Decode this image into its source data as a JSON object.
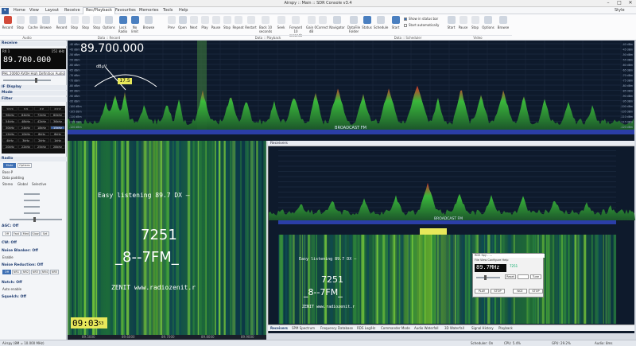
{
  "window": {
    "title": "Airspy :: Main :: SDR Console v3.4"
  },
  "menu": {
    "tabs": [
      "Home",
      "View",
      "Layout",
      "Receive",
      "Rec/Playback",
      "Favourites",
      "Memories",
      "Tools",
      "Help"
    ],
    "active": "Rec/Playback",
    "style": "Style"
  },
  "ribbon": {
    "audio": {
      "label": "Audio",
      "buttons": [
        "Record",
        "Stop",
        "Cache",
        "Browse"
      ]
    },
    "record": {
      "label": "Data :: Record",
      "buttons": [
        "Record",
        "Stop",
        "Stop",
        "Stop",
        "Options",
        "Lock Radio",
        "No limit",
        "Browse"
      ]
    },
    "playback": {
      "label": "Data :: Playback",
      "buttons": [
        "Prev",
        "Open",
        "Next",
        "Play",
        "Pause",
        "Stop",
        "Repeat",
        "Restart",
        "Back 10 seconds",
        "Seek",
        "Forward 10 seconds",
        "Gain 0 dB",
        "Correct",
        "Navigator",
        "DataFile Folder",
        "Status"
      ]
    },
    "scheduler": {
      "label": "Data :: Scheduler",
      "buttons": [
        "Schedule",
        "Start"
      ],
      "checks": [
        "Show in status bar",
        "Start automatically"
      ]
    },
    "video": {
      "label": "Video",
      "buttons": [
        "Start",
        "Pause",
        "Stop",
        "Options",
        "Browse"
      ]
    }
  },
  "left": {
    "receive_header": "Receive",
    "rx": {
      "label": "RX 1",
      "rate": "151 kHz",
      "freq": "89.700.000"
    },
    "station": "PHL 20060 AVOH High Definition Audio",
    "if_display": "IF Display",
    "mode": "Mode",
    "filter": "Filter",
    "filter_cells": [
      "<<<",
      "<<",
      ">>",
      ">>>",
      "96kHz",
      "84kHz",
      "72kHz",
      "60kHz",
      "54kHz",
      "48kHz",
      "42kHz",
      "36kHz",
      "30kHz",
      "24kHz",
      "18kHz",
      "15kHz",
      "12kHz",
      "10kHz",
      "8kHz",
      "6kHz",
      "4kHz",
      "3kHz",
      "2kHz",
      "1kHz",
      "20kHz",
      "22kHz",
      "25kHz",
      "28kHz"
    ],
    "radio_header": "Radio",
    "radio_tabs": [
      "Mute",
      "Options"
    ],
    "radio_opts": [
      "Bass-P",
      "Data padding",
      "Stereo",
      "Global",
      "Selective"
    ],
    "agc": "AGC: Off",
    "agc_btns": [
      "Off",
      "Fast",
      "Med",
      "Slow",
      "Set"
    ],
    "cw": "CW: Off",
    "noise_blanker": "Noise Blanker: Off",
    "nb_enable": "Enable",
    "noise_reduction": "Noise Reduction: Off",
    "nr_btns": [
      "Off",
      "NR1",
      "NR2",
      "NR3",
      "NR4",
      "NR5"
    ],
    "notch": "Notch: Off",
    "notch_opt": "Auto enable",
    "squelch": "Squelch: Off"
  },
  "spectrum": {
    "freq": "89.700.000",
    "meter_label": "dBµV",
    "meter_value": "17.5",
    "band_label": "BROADCAST FM",
    "db_ticks": [
      "-40 dBm",
      "-45 dBm",
      "-50 dBm",
      "-55 dBm",
      "-60 dBm",
      "-65 dBm",
      "-70 dBm",
      "-75 dBm",
      "-80 dBm",
      "-85 dBm",
      "-90 dBm",
      "-95 dBm",
      "-100 dBm",
      "-105 dBm",
      "-110 dBm",
      "-115 dBm",
      "-120 dBm"
    ]
  },
  "waterfall_main": {
    "rds_ps": "Easy listening  89.7  DX  —",
    "rds_pi": "7251",
    "rds_name": "_8--7FM_",
    "rds_rt": "ZENIT  www.radiozenit.r",
    "clock": "09:03",
    "clock_sec": "53",
    "ticks": [
      "89.5000",
      "89.6000",
      "89.7000",
      "89.8000",
      "89.9000"
    ]
  },
  "receivers": {
    "header": "Receivers",
    "band_label": "BROADCAST FM",
    "rds_ps": "Easy listening  89.7  DX  —",
    "rds_pi": "7251",
    "rds_name": "_8--7FM_",
    "rds_rt": "ZENIT  www.radiozenit.r"
  },
  "rds_spy": {
    "title": "RDS Spy - ...",
    "menu": "File   View   Configure   Help",
    "freq": "89.7MHz",
    "pi": "7251",
    "reset": "Reset",
    "tune": "Tune",
    "play": "PLAY",
    "stop": "STOP",
    "nce": "NCE",
    "stop2": "STOP"
  },
  "subtabs": [
    "Receivers",
    "SPM Spectrum",
    "Frequency Database",
    "RDS Log/Hz",
    "Commander Mode",
    "Audio Waterfall",
    "3D Waterfall",
    "Signal History",
    "Playback"
  ],
  "status": {
    "left": "Airspy (8M = 10.000 MHz)",
    "scheduler": "Scheduler: On",
    "cpu": "CPU: 5.4%",
    "gpu": "GPU: 29.2%",
    "audio": "Audio: 8ms"
  },
  "colors": {
    "accent": "#3d6fb3",
    "spectrum_bg": "#0e1a2c",
    "peak_green": "#3cbf3c",
    "peak_red": "#e0302a",
    "filter_blue": "#2b3ea8"
  }
}
